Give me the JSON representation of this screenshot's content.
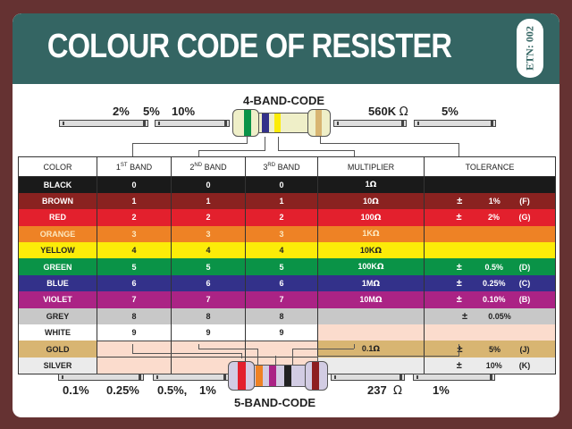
{
  "header": {
    "title": "COLOUR CODE OF RESISTER",
    "badge": "ETN: 002"
  },
  "four_band": {
    "label": "4-BAND-CODE",
    "tolerance_choices": [
      "2%",
      "5%",
      "10%"
    ],
    "value": "560K",
    "value_unit": "Ω",
    "tolerance": "5%",
    "bands": [
      {
        "color": "green",
        "hex": "#0a9347"
      },
      {
        "color": "blue",
        "hex": "#33318a"
      },
      {
        "color": "yellow",
        "hex": "#fcec08"
      },
      {
        "color": "gold",
        "hex": "#d8b572"
      }
    ],
    "body_hex": "#efefc8"
  },
  "five_band": {
    "label": "5-BAND-CODE",
    "tolerance_choices": [
      "0.1%",
      "0.25%",
      "0.5%,",
      "1%"
    ],
    "value": "237",
    "value_unit": "Ω",
    "tolerance": "1%",
    "bands": [
      {
        "color": "red",
        "hex": "#e3202d"
      },
      {
        "color": "orange",
        "hex": "#ee8225"
      },
      {
        "color": "violet",
        "hex": "#ab2385"
      },
      {
        "color": "black",
        "hex": "#222222"
      },
      {
        "color": "brown",
        "hex": "#8e1f20"
      }
    ],
    "body_hex": "#d2cce3"
  },
  "table": {
    "headers": {
      "color": "COLOR",
      "band1_num": "1",
      "band1_sup": "ST",
      "band1_text": " BAND",
      "band2_num": "2",
      "band2_sup": "ND",
      "band2_text": " BAND",
      "band3_num": "3",
      "band3_sup": "RD",
      "band3_text": " BAND",
      "multiplier": "MULTIPLIER",
      "tolerance": "TOLERANCE"
    },
    "rows": [
      {
        "color": "BLACK",
        "b1": "0",
        "b2": "0",
        "b3": "0",
        "mult": "1",
        "mult_unit": "Ω",
        "tol_sign": "",
        "tol": "",
        "code": "",
        "bg": "#1a1a1a",
        "fg": "#ffffff"
      },
      {
        "color": "BROWN",
        "b1": "1",
        "b2": "1",
        "b3": "1",
        "mult": "10",
        "mult_unit": "Ω",
        "tol_sign": "±",
        "tol": "1%",
        "code": "(F)",
        "bg": "#8a2220",
        "fg": "#ffffff"
      },
      {
        "color": "RED",
        "b1": "2",
        "b2": "2",
        "b3": "2",
        "mult": "100",
        "mult_unit": "Ω",
        "tol_sign": "±",
        "tol": "2%",
        "code": "(G)",
        "bg": "#e3202d",
        "fg": "#ffffff"
      },
      {
        "color": "ORANGE",
        "b1": "3",
        "b2": "3",
        "b3": "3",
        "mult": "1K",
        "mult_unit": "Ω",
        "tol_sign": "",
        "tol": "",
        "code": "",
        "bg": "#ee8225",
        "fg": "#fce8c0"
      },
      {
        "color": "YELLOW",
        "b1": "4",
        "b2": "4",
        "b3": "4",
        "mult": "10K",
        "mult_unit": "Ω",
        "tol_sign": "",
        "tol": "",
        "code": "",
        "bg": "#fcec08",
        "fg": "#222222"
      },
      {
        "color": "GREEN",
        "b1": "5",
        "b2": "5",
        "b3": "5",
        "mult": "100K",
        "mult_unit": "Ω",
        "tol_sign": "±",
        "tol": "0.5%",
        "code": "(D)",
        "bg": "#0a9347",
        "fg": "#ffffff"
      },
      {
        "color": "BLUE",
        "b1": "6",
        "b2": "6",
        "b3": "6",
        "mult": "1M",
        "mult_unit": "Ω",
        "tol_sign": "±",
        "tol": "0.25%",
        "code": "(C)",
        "bg": "#33318a",
        "fg": "#ffffff"
      },
      {
        "color": "VIOLET",
        "b1": "7",
        "b2": "7",
        "b3": "7",
        "mult": "10M",
        "mult_unit": "Ω",
        "tol_sign": "±",
        "tol": "0.10%",
        "code": "(B)",
        "bg": "#ab2385",
        "fg": "#ffffff"
      },
      {
        "color": "GREY",
        "b1": "8",
        "b2": "8",
        "b3": "8",
        "mult": "",
        "mult_unit": "",
        "tol_sign": "±",
        "tol": "0.05%",
        "code": "",
        "bg": "#c8c8c8",
        "fg": "#222222"
      },
      {
        "color": "WHITE",
        "b1": "9",
        "b2": "9",
        "b3": "9",
        "mult": "",
        "mult_unit": "",
        "tol_sign": "",
        "tol": "",
        "code": "",
        "bg": "#ffffff",
        "fg": "#222222",
        "mult_bg": "#fbdccd",
        "tol_bg": "#fbdccd"
      },
      {
        "color": "GOLD",
        "b1": "",
        "b2": "",
        "b3": "",
        "mult": "0.1",
        "mult_unit": "Ω",
        "tol_sign": "±",
        "tol": "5%",
        "code": "(J)",
        "bg": "#d8b572",
        "fg": "#222222",
        "empty_bands": true
      },
      {
        "color": "SILVER",
        "b1": "",
        "b2": "",
        "b3": "",
        "mult": "",
        "mult_unit": "",
        "tol_sign": "±",
        "tol": "10%",
        "code": "(K)",
        "bg": "#ebebeb",
        "fg": "#222222",
        "empty_bands": true
      }
    ]
  },
  "colors": {
    "background": "#653232",
    "header": "#346563",
    "empty_cell": "#fbdccd"
  }
}
